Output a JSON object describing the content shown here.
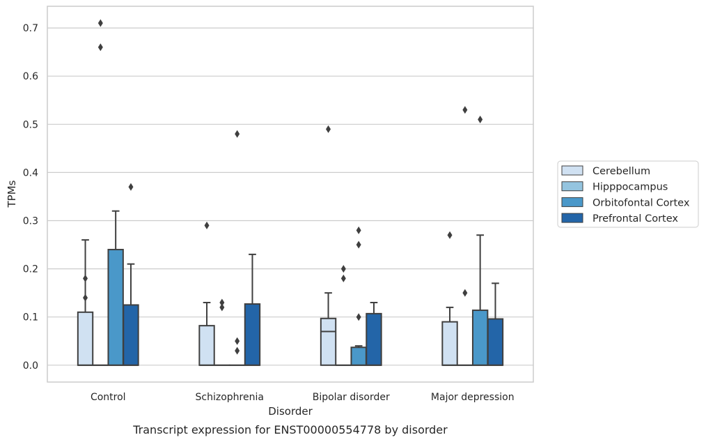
{
  "chart_data": {
    "type": "box",
    "xlabel": "Disorder",
    "ylabel": "TPMs",
    "caption": "Transcript expression for ENST00000554778 by disorder",
    "categories": [
      "Control",
      "Schizophrenia",
      "Bipolar disorder",
      "Major depression"
    ],
    "ylim": [
      -0.035,
      0.745
    ],
    "yticks": [
      "0.0",
      "0.1",
      "0.2",
      "0.3",
      "0.4",
      "0.5",
      "0.6",
      "0.7"
    ],
    "grid": true,
    "legend": {
      "placement": "right",
      "entries": [
        "Cerebellum",
        "Hipppocampus",
        "Orbitofontal Cortex",
        "Prefrontal Cortex"
      ]
    },
    "series": [
      {
        "name": "Cerebellum",
        "color": "#d0e1f2",
        "boxes": [
          {
            "q1": 0.0,
            "median": 0.0,
            "q3": 0.11,
            "whisker_low": 0.0,
            "whisker_high": 0.26,
            "outliers": [
              0.18,
              0.14
            ]
          },
          {
            "q1": 0.0,
            "median": 0.0,
            "q3": 0.082,
            "whisker_low": 0.0,
            "whisker_high": 0.13,
            "outliers": [
              0.29
            ]
          },
          {
            "q1": 0.0,
            "median": 0.07,
            "q3": 0.097,
            "whisker_low": 0.0,
            "whisker_high": 0.15,
            "outliers": [
              0.49
            ]
          },
          {
            "q1": 0.0,
            "median": 0.0,
            "q3": 0.09,
            "whisker_low": 0.0,
            "whisker_high": 0.12,
            "outliers": [
              0.27
            ]
          }
        ]
      },
      {
        "name": "Hipppocampus",
        "color": "#94c4df",
        "boxes": [
          {
            "q1": 0.0,
            "median": 0.0,
            "q3": 0.0,
            "whisker_low": 0.0,
            "whisker_high": 0.0,
            "outliers": [
              0.71,
              0.66
            ]
          },
          {
            "q1": 0.0,
            "median": 0.0,
            "q3": 0.0,
            "whisker_low": 0.0,
            "whisker_high": 0.0,
            "outliers": [
              0.13,
              0.12
            ]
          },
          {
            "q1": 0.0,
            "median": 0.0,
            "q3": 0.0,
            "whisker_low": 0.0,
            "whisker_high": 0.0,
            "outliers": [
              0.2,
              0.18
            ]
          },
          {
            "q1": 0.0,
            "median": 0.0,
            "q3": 0.0,
            "whisker_low": 0.0,
            "whisker_high": 0.0,
            "outliers": [
              0.53,
              0.15
            ]
          }
        ]
      },
      {
        "name": "Orbitofontal Cortex",
        "color": "#4a98c9",
        "boxes": [
          {
            "q1": 0.0,
            "median": 0.0,
            "q3": 0.24,
            "whisker_low": 0.0,
            "whisker_high": 0.32,
            "outliers": []
          },
          {
            "q1": 0.0,
            "median": 0.0,
            "q3": 0.0,
            "whisker_low": 0.0,
            "whisker_high": 0.0,
            "outliers": [
              0.48,
              0.05,
              0.03
            ]
          },
          {
            "q1": 0.0,
            "median": 0.0,
            "q3": 0.037,
            "whisker_low": 0.0,
            "whisker_high": 0.04,
            "outliers": [
              0.28,
              0.25,
              0.1
            ]
          },
          {
            "q1": 0.0,
            "median": 0.0,
            "q3": 0.114,
            "whisker_low": 0.0,
            "whisker_high": 0.27,
            "outliers": [
              0.51
            ]
          }
        ]
      },
      {
        "name": "Prefrontal Cortex",
        "color": "#2365a8",
        "boxes": [
          {
            "q1": 0.0,
            "median": 0.0,
            "q3": 0.125,
            "whisker_low": 0.0,
            "whisker_high": 0.21,
            "outliers": [
              0.37
            ]
          },
          {
            "q1": 0.0,
            "median": 0.0,
            "q3": 0.127,
            "whisker_low": 0.0,
            "whisker_high": 0.23,
            "outliers": []
          },
          {
            "q1": 0.0,
            "median": 0.0,
            "q3": 0.107,
            "whisker_low": 0.0,
            "whisker_high": 0.13,
            "outliers": []
          },
          {
            "q1": 0.0,
            "median": 0.0,
            "q3": 0.096,
            "whisker_low": 0.0,
            "whisker_high": 0.17,
            "outliers": []
          }
        ]
      }
    ]
  }
}
